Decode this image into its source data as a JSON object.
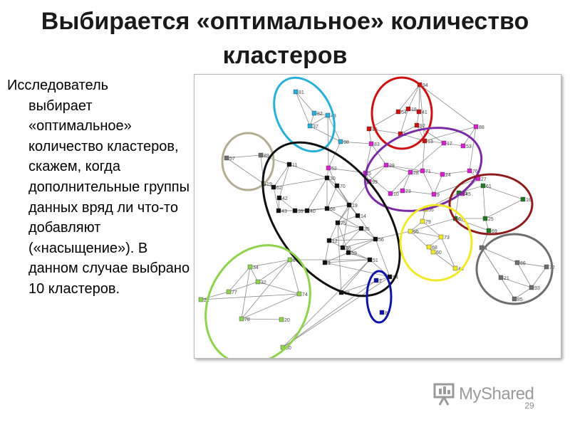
{
  "slide": {
    "title_line1": "Выбирается «оптимальное» количество",
    "title_line2": "кластеров",
    "text_first": "Исследователь",
    "text_rest": "выбирает «оптимальное» количество кластеров, скажем, когда дополнительные группы данных вряд ли что-то добавляют («насыщение»). В данном случае выбрано 10 кластеров.",
    "page_number": "29",
    "watermark": "MyShared"
  },
  "colors": {
    "black": "#111111",
    "red": "#cc1111",
    "purple": "#7a2aa5",
    "magenta": "#d822d0",
    "cyan": "#28b0d8",
    "tan": "#b3ad94",
    "gray": "#6e6e6e",
    "darkred": "#8e1c1c",
    "green": "#207a20",
    "lightgreen": "#8fd24d",
    "yellow": "#f0e82a",
    "blue": "#0f14a8",
    "edge": "#8a8a8a"
  },
  "clusters": [
    {
      "id": "cyan",
      "color": "cyan"
    },
    {
      "id": "red",
      "color": "red"
    },
    {
      "id": "purple",
      "color": "purple"
    },
    {
      "id": "tan",
      "color": "tan"
    },
    {
      "id": "black",
      "color": "black"
    },
    {
      "id": "darkred",
      "color": "darkred"
    },
    {
      "id": "yellow",
      "color": "yellow"
    },
    {
      "id": "gray",
      "color": "gray"
    },
    {
      "id": "lightgreen",
      "color": "lightgreen"
    },
    {
      "id": "blue",
      "color": "blue"
    }
  ],
  "nodes": [
    {
      "label": "81",
      "color": "cyan"
    },
    {
      "label": "82",
      "color": "cyan"
    },
    {
      "label": "48",
      "color": "cyan"
    },
    {
      "label": "37",
      "color": "cyan"
    },
    {
      "label": "98",
      "color": "cyan"
    },
    {
      "label": "94",
      "color": "red"
    },
    {
      "label": "64",
      "color": "red"
    },
    {
      "label": "18",
      "color": "red"
    },
    {
      "label": "41",
      "color": "red"
    },
    {
      "label": "92",
      "color": "red"
    },
    {
      "label": "15",
      "color": "red"
    },
    {
      "label": "1",
      "color": "red"
    },
    {
      "label": "13",
      "color": "red"
    },
    {
      "label": "83",
      "color": "magenta"
    },
    {
      "label": "17",
      "color": "magenta"
    },
    {
      "label": "53",
      "color": "magenta"
    },
    {
      "label": "29",
      "color": "magenta"
    },
    {
      "label": "28",
      "color": "magenta"
    },
    {
      "label": "71",
      "color": "magenta"
    },
    {
      "label": "24",
      "color": "magenta"
    },
    {
      "label": "5",
      "color": "magenta"
    },
    {
      "label": "10",
      "color": "magenta"
    },
    {
      "label": "23",
      "color": "magenta"
    },
    {
      "label": "9",
      "color": "magenta"
    },
    {
      "label": "88",
      "color": "magenta"
    },
    {
      "label": "76",
      "color": "magenta"
    },
    {
      "label": "45",
      "color": "magenta"
    },
    {
      "label": "27",
      "color": "magenta"
    },
    {
      "label": "99",
      "color": "magenta"
    },
    {
      "label": "52",
      "color": "magenta"
    },
    {
      "label": "57",
      "color": "gray"
    },
    {
      "label": "89",
      "color": "gray"
    },
    {
      "label": "19",
      "color": "gray"
    },
    {
      "label": "62",
      "color": "black"
    },
    {
      "label": "11",
      "color": "black"
    },
    {
      "label": "42",
      "color": "black"
    },
    {
      "label": "43",
      "color": "black"
    },
    {
      "label": "39",
      "color": "black"
    },
    {
      "label": "40",
      "color": "black"
    },
    {
      "label": "30",
      "color": "black"
    },
    {
      "label": "70",
      "color": "black"
    },
    {
      "label": "66",
      "color": "black"
    },
    {
      "label": "19",
      "color": "black"
    },
    {
      "label": "14",
      "color": "black"
    },
    {
      "label": "75",
      "color": "black"
    },
    {
      "label": "35",
      "color": "black"
    },
    {
      "label": "12",
      "color": "black"
    },
    {
      "label": "36",
      "color": "black"
    },
    {
      "label": "56",
      "color": "black"
    },
    {
      "label": "59",
      "color": "black"
    },
    {
      "label": "51",
      "color": "black"
    },
    {
      "label": "3",
      "color": "black"
    },
    {
      "label": "54",
      "color": "black"
    },
    {
      "label": "63",
      "color": "black"
    },
    {
      "label": "55",
      "color": "yellow"
    },
    {
      "label": "79",
      "color": "yellow"
    },
    {
      "label": "95",
      "color": "yellow"
    },
    {
      "label": "73",
      "color": "yellow"
    },
    {
      "label": "68",
      "color": "yellow"
    },
    {
      "label": "60",
      "color": "yellow"
    },
    {
      "label": "46",
      "color": "yellow"
    },
    {
      "label": "45",
      "color": "green"
    },
    {
      "label": "61",
      "color": "green"
    },
    {
      "label": "16",
      "color": "green"
    },
    {
      "label": "67",
      "color": "green"
    },
    {
      "label": "25",
      "color": "green"
    },
    {
      "label": "69",
      "color": "green"
    },
    {
      "label": "4",
      "color": "gray"
    },
    {
      "label": "86",
      "color": "gray"
    },
    {
      "label": "72",
      "color": "gray"
    },
    {
      "label": "21",
      "color": "gray"
    },
    {
      "label": "93",
      "color": "gray"
    },
    {
      "label": "85",
      "color": "gray"
    },
    {
      "label": "87",
      "color": "lightgreen"
    },
    {
      "label": "34",
      "color": "lightgreen"
    },
    {
      "label": "32",
      "color": "lightgreen"
    },
    {
      "label": "77",
      "color": "lightgreen"
    },
    {
      "label": "22",
      "color": "lightgreen"
    },
    {
      "label": "74",
      "color": "lightgreen"
    },
    {
      "label": "78",
      "color": "lightgreen"
    },
    {
      "label": "20",
      "color": "lightgreen"
    },
    {
      "label": "80",
      "color": "lightgreen"
    },
    {
      "label": "2",
      "color": "blue"
    },
    {
      "label": "8",
      "color": "blue"
    }
  ]
}
